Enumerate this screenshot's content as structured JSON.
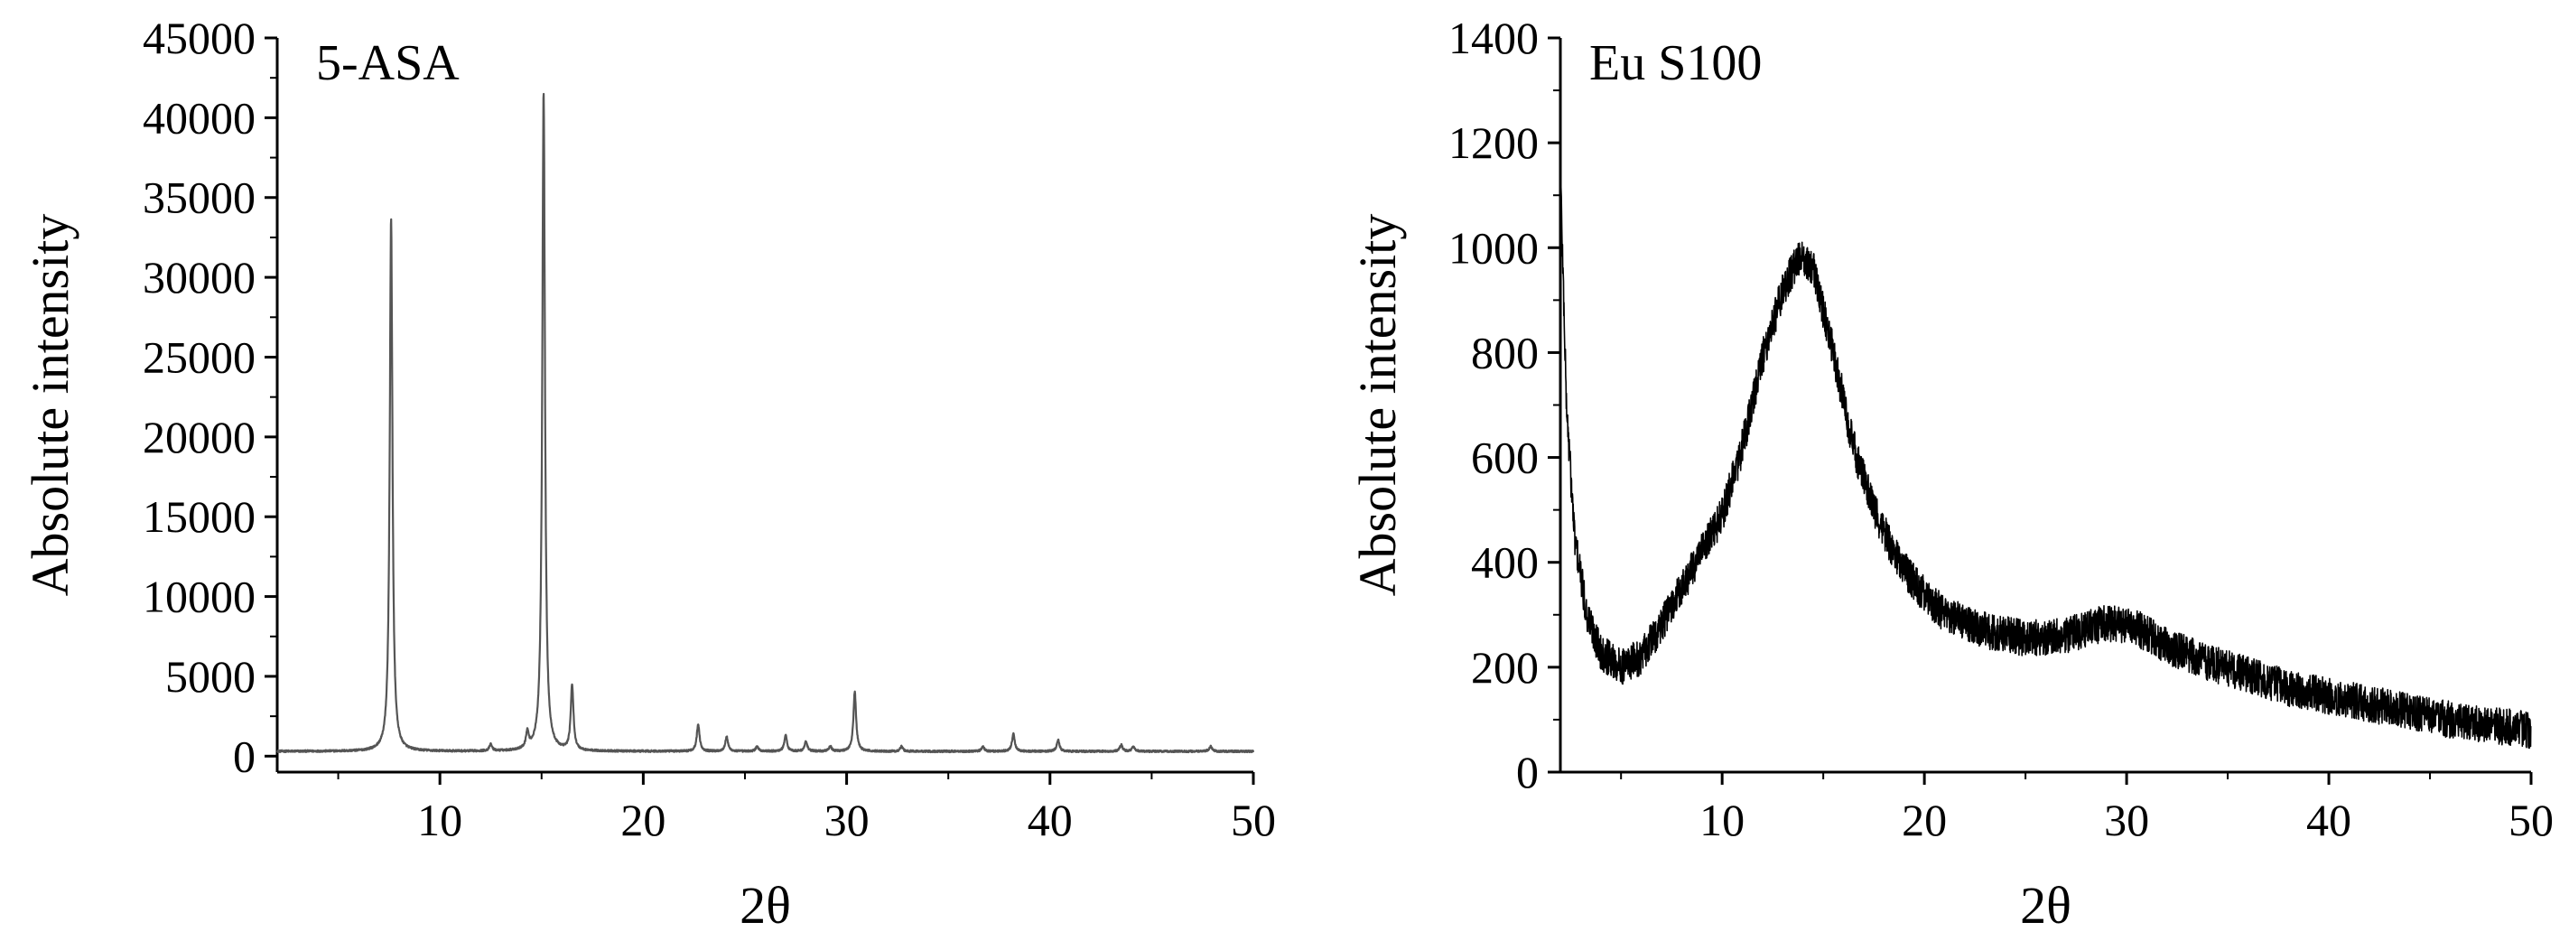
{
  "chart_data": [
    {
      "type": "line",
      "title": "5-ASA",
      "xlabel": "2θ",
      "ylabel": "Absolute intensity",
      "xlim": [
        2,
        50
      ],
      "ylim": [
        -1000,
        45000
      ],
      "xticks": [
        10,
        20,
        30,
        40,
        50
      ],
      "yticks": [
        0,
        5000,
        10000,
        15000,
        20000,
        25000,
        30000,
        35000,
        40000,
        45000
      ],
      "grid": false,
      "line_color": "#555555",
      "baseline": 300,
      "peaks": [
        {
          "x": 7.6,
          "y": 33700
        },
        {
          "x": 12.5,
          "y": 700
        },
        {
          "x": 14.3,
          "y": 1300
        },
        {
          "x": 15.1,
          "y": 41600
        },
        {
          "x": 16.5,
          "y": 4400
        },
        {
          "x": 22.7,
          "y": 2000
        },
        {
          "x": 24.1,
          "y": 1200
        },
        {
          "x": 25.6,
          "y": 600
        },
        {
          "x": 27.0,
          "y": 1300
        },
        {
          "x": 28.0,
          "y": 900
        },
        {
          "x": 29.2,
          "y": 600
        },
        {
          "x": 30.4,
          "y": 4000
        },
        {
          "x": 32.7,
          "y": 600
        },
        {
          "x": 36.7,
          "y": 600
        },
        {
          "x": 38.2,
          "y": 1400
        },
        {
          "x": 40.4,
          "y": 1000
        },
        {
          "x": 43.5,
          "y": 700
        },
        {
          "x": 44.1,
          "y": 600
        },
        {
          "x": 47.9,
          "y": 600
        }
      ]
    },
    {
      "type": "line",
      "title": "Eu S100",
      "xlabel": "2θ",
      "ylabel": "Absolute intensity",
      "xlim": [
        2,
        50
      ],
      "ylim": [
        0,
        1400
      ],
      "xticks": [
        10,
        20,
        30,
        40,
        50
      ],
      "yticks": [
        0,
        200,
        400,
        600,
        800,
        1000,
        1200,
        1400
      ],
      "grid": false,
      "line_color": "#000000",
      "noise_amplitude": 35,
      "profile": [
        {
          "x": 2.0,
          "y": 1150
        },
        {
          "x": 2.3,
          "y": 700
        },
        {
          "x": 2.7,
          "y": 450
        },
        {
          "x": 3.3,
          "y": 300
        },
        {
          "x": 4.0,
          "y": 230
        },
        {
          "x": 5.0,
          "y": 200
        },
        {
          "x": 6.0,
          "y": 220
        },
        {
          "x": 7.0,
          "y": 280
        },
        {
          "x": 8.0,
          "y": 350
        },
        {
          "x": 9.0,
          "y": 420
        },
        {
          "x": 10.0,
          "y": 490
        },
        {
          "x": 11.0,
          "y": 620
        },
        {
          "x": 12.0,
          "y": 790
        },
        {
          "x": 13.0,
          "y": 920
        },
        {
          "x": 13.8,
          "y": 980
        },
        {
          "x": 14.5,
          "y": 960
        },
        {
          "x": 15.5,
          "y": 800
        },
        {
          "x": 16.5,
          "y": 620
        },
        {
          "x": 17.5,
          "y": 500
        },
        {
          "x": 18.5,
          "y": 420
        },
        {
          "x": 19.5,
          "y": 360
        },
        {
          "x": 21.0,
          "y": 300
        },
        {
          "x": 23.0,
          "y": 270
        },
        {
          "x": 25.0,
          "y": 255
        },
        {
          "x": 27.0,
          "y": 260
        },
        {
          "x": 29.0,
          "y": 285
        },
        {
          "x": 30.5,
          "y": 275
        },
        {
          "x": 32.0,
          "y": 240
        },
        {
          "x": 34.0,
          "y": 210
        },
        {
          "x": 36.0,
          "y": 185
        },
        {
          "x": 38.0,
          "y": 160
        },
        {
          "x": 40.0,
          "y": 145
        },
        {
          "x": 42.0,
          "y": 130
        },
        {
          "x": 44.0,
          "y": 115
        },
        {
          "x": 46.0,
          "y": 100
        },
        {
          "x": 48.0,
          "y": 90
        },
        {
          "x": 50.0,
          "y": 80
        }
      ]
    }
  ]
}
